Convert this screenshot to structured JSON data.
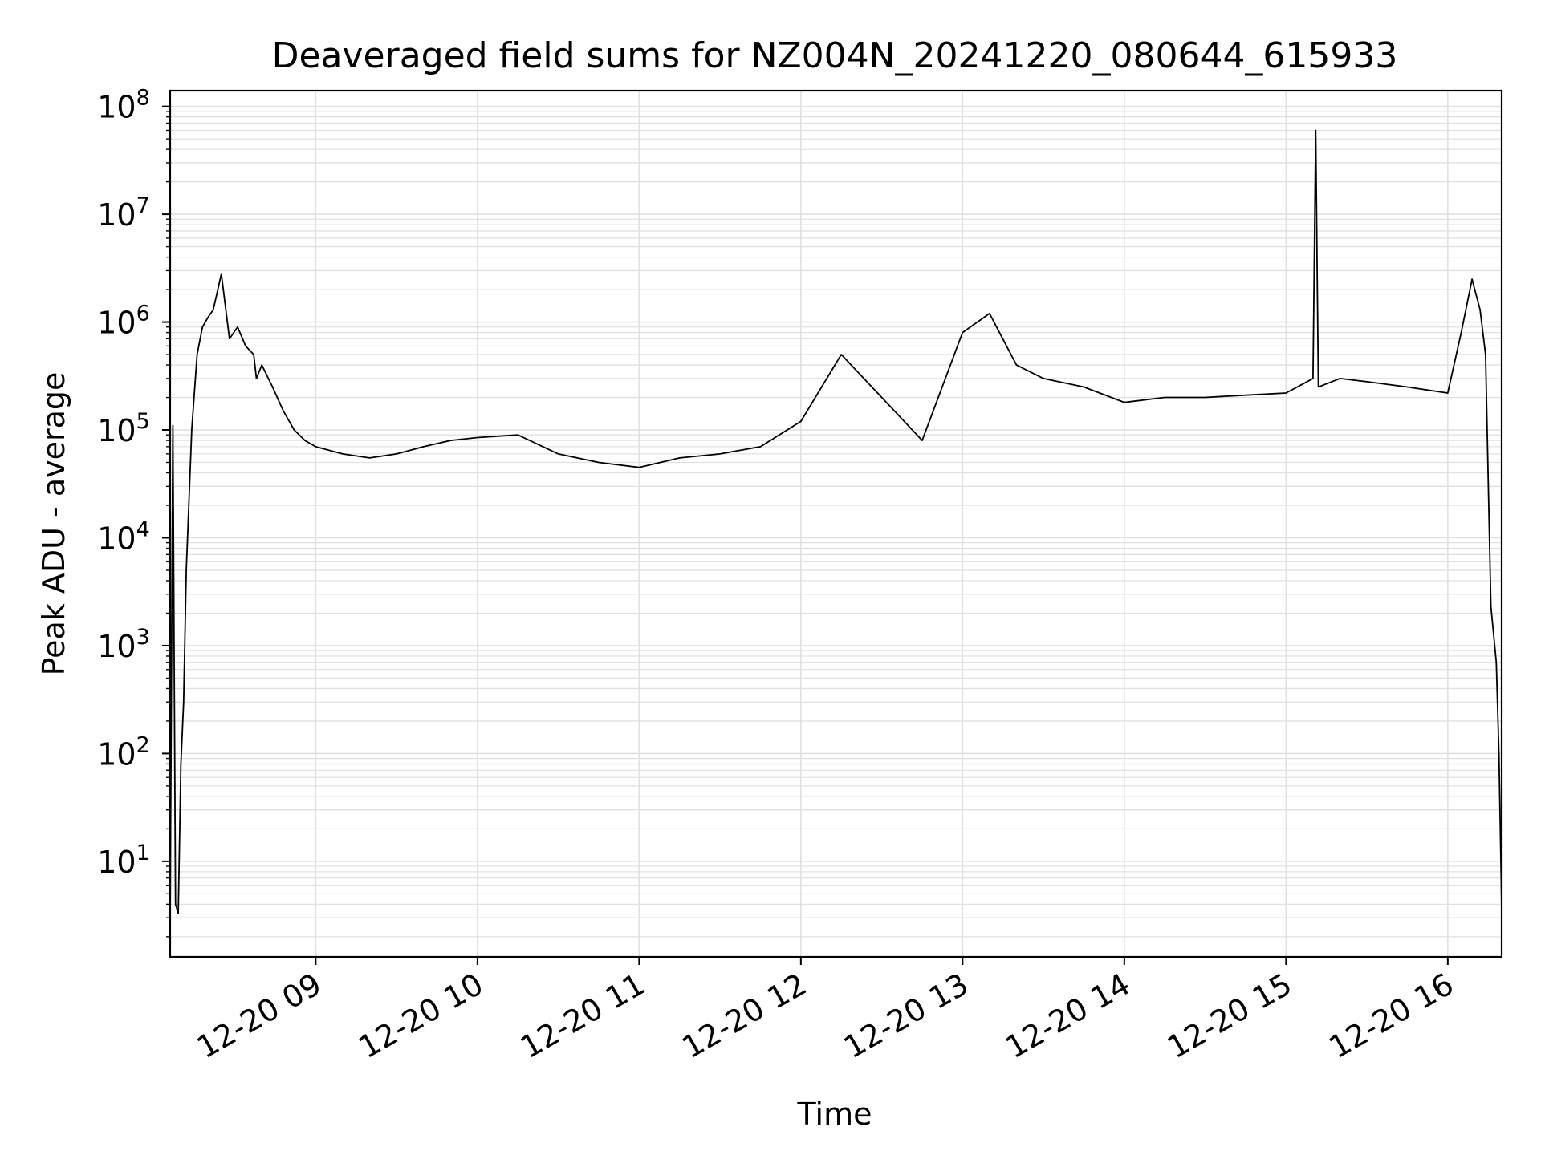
{
  "chart_data": {
    "type": "line",
    "title": "Deaveraged field sums for NZ004N_20241220_080644_615933",
    "xlabel": "Time",
    "ylabel": "Peak ADU - average",
    "yscale": "log",
    "ylim": [
      1.3,
      140000000
    ],
    "xlim": [
      "2024-12-20 08:06",
      "2024-12-20 16:20"
    ],
    "grid": {
      "major": true,
      "minor_y": true
    },
    "line_color": "#000000",
    "x_ticks": [
      "12-20 09",
      "12-20 10",
      "12-20 11",
      "12-20 12",
      "12-20 13",
      "12-20 14",
      "12-20 15",
      "12-20 16"
    ],
    "y_ticks": [
      {
        "base": "10",
        "exp": "1"
      },
      {
        "base": "10",
        "exp": "2"
      },
      {
        "base": "10",
        "exp": "3"
      },
      {
        "base": "10",
        "exp": "4"
      },
      {
        "base": "10",
        "exp": "5"
      },
      {
        "base": "10",
        "exp": "6"
      },
      {
        "base": "10",
        "exp": "7"
      },
      {
        "base": "10",
        "exp": "8"
      }
    ],
    "series": [
      {
        "x": [
          "2024-12-20 08:06",
          "2024-12-20 08:07",
          "2024-12-20 08:08",
          "2024-12-20 08:09",
          "2024-12-20 08:10",
          "2024-12-20 08:11",
          "2024-12-20 08:12",
          "2024-12-20 08:14",
          "2024-12-20 08:16",
          "2024-12-20 08:18",
          "2024-12-20 08:20",
          "2024-12-20 08:22",
          "2024-12-20 08:25",
          "2024-12-20 08:28",
          "2024-12-20 08:31",
          "2024-12-20 08:34",
          "2024-12-20 08:37",
          "2024-12-20 08:38",
          "2024-12-20 08:40",
          "2024-12-20 08:44",
          "2024-12-20 08:48",
          "2024-12-20 08:52",
          "2024-12-20 08:56",
          "2024-12-20 09:00",
          "2024-12-20 09:10",
          "2024-12-20 09:20",
          "2024-12-20 09:30",
          "2024-12-20 09:40",
          "2024-12-20 09:50",
          "2024-12-20 10:00",
          "2024-12-20 10:15",
          "2024-12-20 10:30",
          "2024-12-20 10:45",
          "2024-12-20 11:00",
          "2024-12-20 11:15",
          "2024-12-20 11:30",
          "2024-12-20 11:45",
          "2024-12-20 12:00",
          "2024-12-20 12:15",
          "2024-12-20 12:30",
          "2024-12-20 12:45",
          "2024-12-20 13:00",
          "2024-12-20 13:10",
          "2024-12-20 13:20",
          "2024-12-20 13:30",
          "2024-12-20 13:45",
          "2024-12-20 14:00",
          "2024-12-20 14:15",
          "2024-12-20 14:30",
          "2024-12-20 14:45",
          "2024-12-20 15:00",
          "2024-12-20 15:10",
          "2024-12-20 15:11",
          "2024-12-20 15:12",
          "2024-12-20 15:20",
          "2024-12-20 15:30",
          "2024-12-20 15:45",
          "2024-12-20 16:00",
          "2024-12-20 16:05",
          "2024-12-20 16:09",
          "2024-12-20 16:12",
          "2024-12-20 16:14",
          "2024-12-20 16:16",
          "2024-12-20 16:18",
          "2024-12-20 16:19",
          "2024-12-20 16:20"
        ],
        "y": [
          3,
          110000,
          4,
          3.3,
          80,
          300,
          5000,
          100000,
          500000,
          900000,
          1100000,
          1300000,
          2800000,
          700000,
          900000,
          600000,
          500000,
          300000,
          400000,
          250000,
          150000,
          100000,
          80000,
          70000,
          60000,
          55000,
          60000,
          70000,
          80000,
          85000,
          90000,
          60000,
          50000,
          45000,
          55000,
          60000,
          70000,
          120000,
          500000,
          200000,
          80000,
          800000,
          1200000,
          400000,
          300000,
          250000,
          180000,
          200000,
          200000,
          210000,
          220000,
          300000,
          60000000,
          250000,
          300000,
          280000,
          250000,
          220000,
          800000,
          2500000,
          1300000,
          500000,
          2300,
          700,
          100,
          3.7
        ]
      }
    ]
  }
}
